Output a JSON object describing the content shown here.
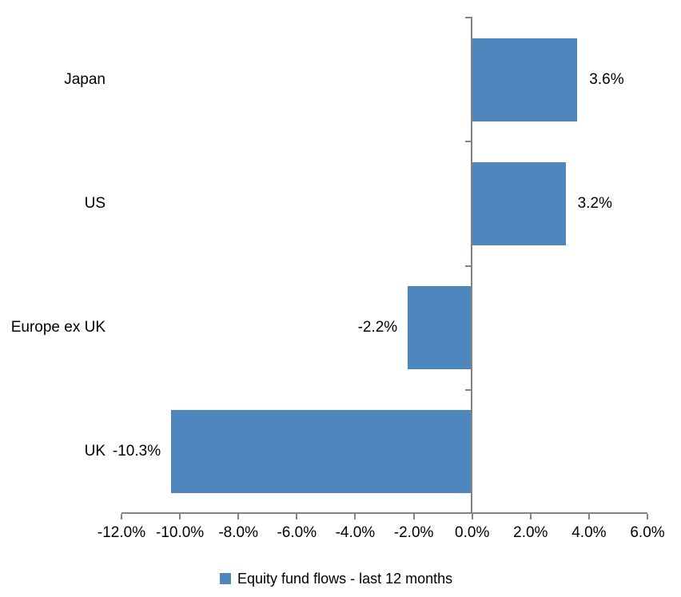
{
  "chart_data": {
    "type": "bar",
    "orientation": "horizontal",
    "title": "",
    "xlabel": "",
    "ylabel": "",
    "categories": [
      "Japan",
      "US",
      "Europe ex UK",
      "UK"
    ],
    "series": [
      {
        "name": "Equity fund flows - last 12 months",
        "values": [
          3.6,
          3.2,
          -2.2,
          -10.3
        ],
        "data_labels": [
          "3.6%",
          "3.2%",
          "-2.2%",
          "-10.3%"
        ]
      }
    ],
    "xlim": [
      -12,
      6
    ],
    "x_tick_step": 2,
    "x_tick_labels": [
      "-12.0%",
      "-10.0%",
      "-8.0%",
      "-6.0%",
      "-4.0%",
      "-2.0%",
      "0.0%",
      "2.0%",
      "4.0%",
      "6.0%"
    ],
    "grid": false,
    "legend_position": "bottom",
    "colors": {
      "bar": "#4E87BD",
      "axis": "#838383",
      "text": "#000000",
      "background": "#FFFFFF"
    }
  },
  "legend": {
    "label": "Equity fund flows - last 12 months",
    "swatch_color": "#4E87BD"
  }
}
